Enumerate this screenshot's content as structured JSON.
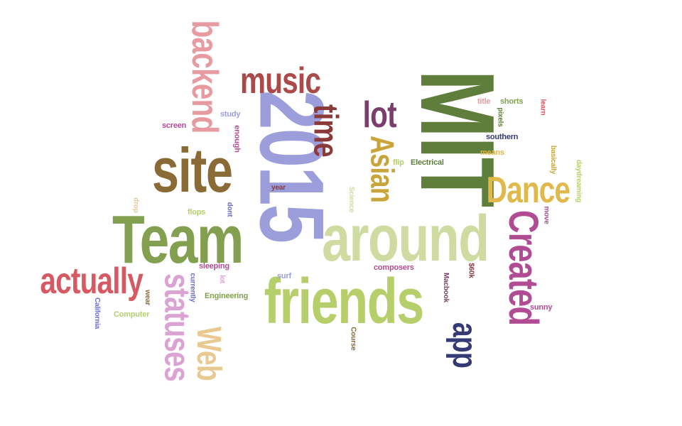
{
  "words": [
    {
      "text": "MIT",
      "color": "#5f7d3b"
    },
    {
      "text": "2015",
      "color": "#9b9edb"
    },
    {
      "text": "site",
      "color": "#8b6b35"
    },
    {
      "text": "Team",
      "color": "#82a04f"
    },
    {
      "text": "around",
      "color": "#cfdba0"
    },
    {
      "text": "friends",
      "color": "#b6cf6a"
    },
    {
      "text": "backend",
      "color": "#e79a9f"
    },
    {
      "text": "music",
      "color": "#aa4a4a"
    },
    {
      "text": "time",
      "color": "#8b3a3a"
    },
    {
      "text": "lot",
      "color": "#7b3d6b"
    },
    {
      "text": "Asian",
      "color": "#c9a43a"
    },
    {
      "text": "Dance",
      "color": "#e1b84c"
    },
    {
      "text": "Created",
      "color": "#b14c94"
    },
    {
      "text": "actually",
      "color": "#d65a63"
    },
    {
      "text": "statuses",
      "color": "#dba3d3"
    },
    {
      "text": "Web",
      "color": "#e8c992"
    },
    {
      "text": "app",
      "color": "#363a74"
    },
    {
      "text": "screen",
      "color": "#b14c94"
    },
    {
      "text": "study",
      "color": "#9b9edb"
    },
    {
      "text": "enough",
      "color": "#b14c94"
    },
    {
      "text": "year",
      "color": "#8b3a3a"
    },
    {
      "text": "dont",
      "color": "#6b6ecf"
    },
    {
      "text": "flops",
      "color": "#b6cf6a"
    },
    {
      "text": "drop",
      "color": "#e8c992"
    },
    {
      "text": "Science",
      "color": "#cfdba0"
    },
    {
      "text": "flip",
      "color": "#b6cf6a"
    },
    {
      "text": "Electrical",
      "color": "#5f7d3b"
    },
    {
      "text": "title",
      "color": "#e79a9f"
    },
    {
      "text": "shorts",
      "color": "#82a04f"
    },
    {
      "text": "pixels",
      "color": "#5f7d3b"
    },
    {
      "text": "learn",
      "color": "#d65a63"
    },
    {
      "text": "southern",
      "color": "#363a74"
    },
    {
      "text": "means",
      "color": "#e1b84c"
    },
    {
      "text": "basically",
      "color": "#c9a43a"
    },
    {
      "text": "daydreaming",
      "color": "#b6cf6a"
    },
    {
      "text": "move",
      "color": "#b14c94"
    },
    {
      "text": "sleeping",
      "color": "#b14c94"
    },
    {
      "text": "currently",
      "color": "#6b6ecf"
    },
    {
      "text": "lot",
      "color": "#dba3d3"
    },
    {
      "text": "surf",
      "color": "#9b9edb"
    },
    {
      "text": "composers",
      "color": "#b14c94"
    },
    {
      "text": "Macbook",
      "color": "#7b3d6b"
    },
    {
      "text": "$60k",
      "color": "#8b3a3a"
    },
    {
      "text": "Engineering",
      "color": "#82a04f"
    },
    {
      "text": "wear",
      "color": "#8b6b35"
    },
    {
      "text": "California",
      "color": "#6b6ecf"
    },
    {
      "text": "Computer",
      "color": "#b6cf6a"
    },
    {
      "text": "Course",
      "color": "#8b6b35"
    },
    {
      "text": "sunny",
      "color": "#b14c94"
    }
  ]
}
